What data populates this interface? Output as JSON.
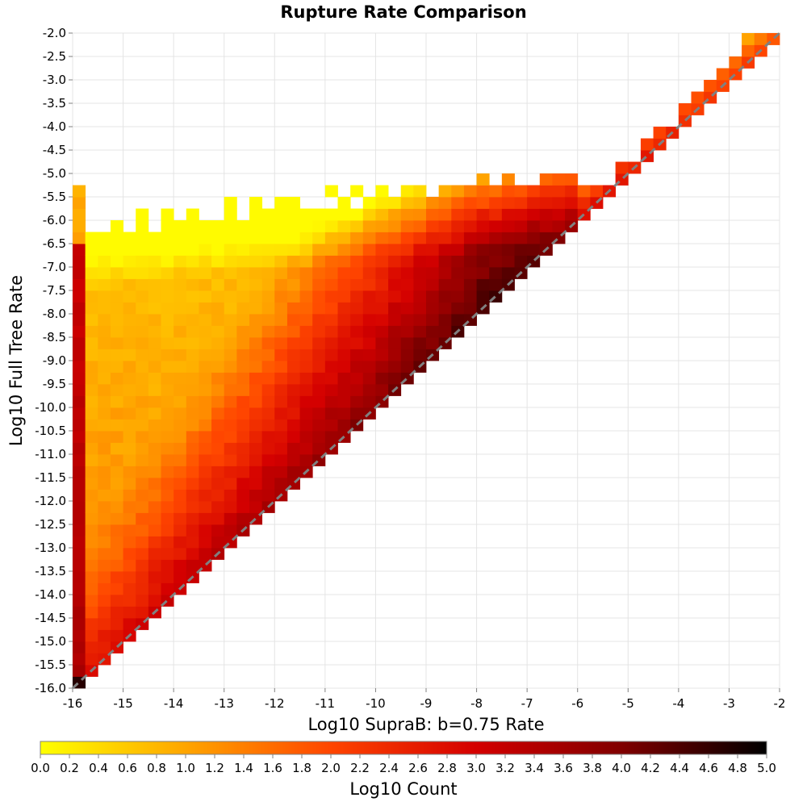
{
  "chart_data": {
    "type": "heatmap",
    "title": "Rupture Rate Comparison",
    "xlabel": "Log10 SupraB: b=0.75 Rate",
    "ylabel": "Log10 Full Tree Rate",
    "xlim": [
      -16,
      -2
    ],
    "ylim": [
      -16,
      -2
    ],
    "bin_size": 0.25,
    "x_ticks": [
      "-16",
      "-15",
      "-14",
      "-13",
      "-12",
      "-11",
      "-10",
      "-9",
      "-8",
      "-7",
      "-6",
      "-5",
      "-4",
      "-3",
      "-2"
    ],
    "y_ticks": [
      "-16.0",
      "-15.5",
      "-15.0",
      "-14.5",
      "-14.0",
      "-13.5",
      "-13.0",
      "-12.5",
      "-12.0",
      "-11.5",
      "-11.0",
      "-10.5",
      "-10.0",
      "-9.5",
      "-9.0",
      "-8.5",
      "-8.0",
      "-7.5",
      "-7.0",
      "-6.5",
      "-6.0",
      "-5.5",
      "-5.0",
      "-4.5",
      "-4.0",
      "-3.5",
      "-3.0",
      "-2.5",
      "-2.0"
    ],
    "grid": true,
    "reference_line": "y = x (dashed gray)",
    "value_description": "Log10 Count per bin; density concentrated along and above the 1:1 diagonal, strongest (4–5) near the diagonal between -12 and -5, a dense column at x = -16, lower values (0–2) far above the diagonal; no bins below the diagonal",
    "colorbar": {
      "label": "Log10 Count",
      "range": [
        0.0,
        5.0
      ],
      "ticks": [
        "0.0",
        "0.2",
        "0.4",
        "0.6",
        "0.8",
        "1.0",
        "1.2",
        "1.4",
        "1.6",
        "1.8",
        "2.0",
        "2.2",
        "2.4",
        "2.6",
        "2.8",
        "3.0",
        "3.2",
        "3.4",
        "3.6",
        "3.8",
        "4.0",
        "4.2",
        "4.4",
        "4.6",
        "4.8",
        "5.0"
      ],
      "colors": [
        "#ffff00",
        "#ffa500",
        "#ff4500",
        "#d40000",
        "#800000",
        "#000000"
      ]
    }
  }
}
